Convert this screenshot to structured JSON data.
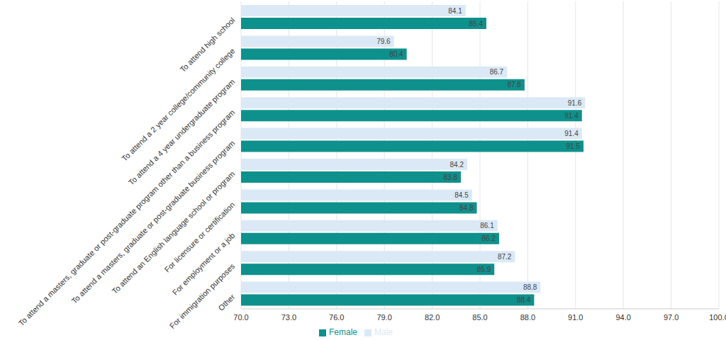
{
  "chart_data": {
    "type": "bar",
    "orientation": "horizontal",
    "categories": [
      "To attend high school",
      "To attend a 2 year college/community college",
      "To attend a 4 year undergraduate program",
      "To attend a masters, graduate or post-graduate program other than a business program",
      "To attend a masters, graduate or post-graduate business program",
      "To attend an English language school or program",
      "For licensure or certification",
      "For employment or a job",
      "For immigration purposes",
      "Other"
    ],
    "series": [
      {
        "name": "Male",
        "color": "#dbe9f6",
        "values": [
          84.1,
          79.6,
          86.7,
          91.6,
          91.4,
          84.2,
          84.5,
          86.1,
          87.2,
          88.8
        ]
      },
      {
        "name": "Female",
        "color": "#0e918c",
        "values": [
          85.4,
          80.4,
          87.8,
          91.4,
          91.5,
          83.8,
          84.8,
          86.2,
          85.9,
          88.4
        ]
      }
    ],
    "xlim": [
      70,
      100
    ],
    "xticks": [
      {
        "value": 70,
        "label": "70.0"
      },
      {
        "value": 73,
        "label": "73.0"
      },
      {
        "value": 76,
        "label": "76.0"
      },
      {
        "value": 79,
        "label": "79.0"
      },
      {
        "value": 82,
        "label": "82.0"
      },
      {
        "value": 85,
        "label": "85.0"
      },
      {
        "value": 88,
        "label": "88.0"
      },
      {
        "value": 91,
        "label": "91.0"
      },
      {
        "value": 94,
        "label": "94.0"
      },
      {
        "value": 97,
        "label": "97.0"
      },
      {
        "value": 100,
        "label": "100.0"
      }
    ],
    "grid": true,
    "legend": "bottom",
    "data_labels": true
  }
}
